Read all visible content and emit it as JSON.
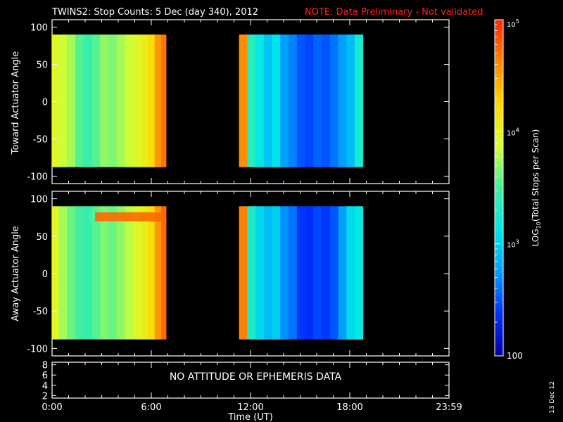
{
  "title": {
    "main": "TWINS2: Stop Counts:  5 Dec (day 340), 2012",
    "note": "NOTE: Data Preliminary - Not validated",
    "note_color": "#ff2020"
  },
  "side_date": "13 Dec 12",
  "chart_data": [
    {
      "type": "heatmap",
      "panel": "toward",
      "ylabel": "Toward Actuator Angle",
      "ylim": [
        -110,
        110
      ],
      "yticks": [
        100,
        50,
        0,
        -50,
        -100
      ],
      "xlim_hours": [
        0,
        24
      ],
      "data_y_range": [
        -88,
        90
      ],
      "coverage_hours": [
        [
          0.0,
          6.9
        ],
        [
          11.3,
          18.8
        ]
      ],
      "column_log_counts": [
        {
          "t0": 0.0,
          "t1": 0.4,
          "v": 3.95
        },
        {
          "t0": 0.4,
          "t1": 0.9,
          "v": 3.85
        },
        {
          "t0": 0.9,
          "t1": 1.4,
          "v": 3.75
        },
        {
          "t0": 1.4,
          "t1": 1.9,
          "v": 3.55
        },
        {
          "t0": 1.9,
          "t1": 2.4,
          "v": 3.45
        },
        {
          "t0": 2.4,
          "t1": 2.9,
          "v": 3.55
        },
        {
          "t0": 2.9,
          "t1": 3.4,
          "v": 3.7
        },
        {
          "t0": 3.4,
          "t1": 3.9,
          "v": 3.65
        },
        {
          "t0": 3.9,
          "t1": 4.4,
          "v": 3.75
        },
        {
          "t0": 4.4,
          "t1": 4.9,
          "v": 3.85
        },
        {
          "t0": 4.9,
          "t1": 5.4,
          "v": 3.95
        },
        {
          "t0": 5.4,
          "t1": 5.8,
          "v": 4.05
        },
        {
          "t0": 5.8,
          "t1": 6.2,
          "v": 4.2
        },
        {
          "t0": 6.2,
          "t1": 6.6,
          "v": 4.55
        },
        {
          "t0": 6.6,
          "t1": 6.9,
          "v": 4.7
        },
        {
          "t0": 11.3,
          "t1": 11.8,
          "v": 4.6
        },
        {
          "t0": 11.8,
          "t1": 12.3,
          "v": 3.35
        },
        {
          "t0": 12.3,
          "t1": 12.8,
          "v": 3.15
        },
        {
          "t0": 12.8,
          "t1": 13.3,
          "v": 2.95
        },
        {
          "t0": 13.3,
          "t1": 13.8,
          "v": 3.1
        },
        {
          "t0": 13.8,
          "t1": 14.3,
          "v": 2.75
        },
        {
          "t0": 14.3,
          "t1": 14.8,
          "v": 2.65
        },
        {
          "t0": 14.8,
          "t1": 15.3,
          "v": 2.5
        },
        {
          "t0": 15.3,
          "t1": 15.8,
          "v": 2.45
        },
        {
          "t0": 15.8,
          "t1": 16.3,
          "v": 2.55
        },
        {
          "t0": 16.3,
          "t1": 16.8,
          "v": 2.5
        },
        {
          "t0": 16.8,
          "t1": 17.3,
          "v": 2.6
        },
        {
          "t0": 17.3,
          "t1": 17.8,
          "v": 2.75
        },
        {
          "t0": 17.8,
          "t1": 18.3,
          "v": 2.9
        },
        {
          "t0": 18.3,
          "t1": 18.8,
          "v": 3.25
        }
      ]
    },
    {
      "type": "heatmap",
      "panel": "away",
      "ylabel": "Away Actuator Angle",
      "ylim": [
        -110,
        110
      ],
      "yticks": [
        100,
        50,
        0,
        -50,
        -100
      ],
      "xlim_hours": [
        0,
        24
      ],
      "data_y_range": [
        -88,
        90
      ],
      "coverage_hours": [
        [
          0.0,
          6.9
        ],
        [
          11.3,
          18.8
        ]
      ],
      "column_log_counts": [
        {
          "t0": 0.0,
          "t1": 0.4,
          "v": 3.95
        },
        {
          "t0": 0.4,
          "t1": 0.9,
          "v": 3.75
        },
        {
          "t0": 0.9,
          "t1": 1.4,
          "v": 3.6
        },
        {
          "t0": 1.4,
          "t1": 1.9,
          "v": 3.5
        },
        {
          "t0": 1.9,
          "t1": 2.4,
          "v": 3.45
        },
        {
          "t0": 2.4,
          "t1": 2.9,
          "v": 3.55
        },
        {
          "t0": 2.9,
          "t1": 3.4,
          "v": 3.65
        },
        {
          "t0": 3.4,
          "t1": 3.9,
          "v": 3.6
        },
        {
          "t0": 3.9,
          "t1": 4.4,
          "v": 3.7
        },
        {
          "t0": 4.4,
          "t1": 4.9,
          "v": 3.8
        },
        {
          "t0": 4.9,
          "t1": 5.4,
          "v": 3.95
        },
        {
          "t0": 5.4,
          "t1": 5.8,
          "v": 4.05
        },
        {
          "t0": 5.8,
          "t1": 6.2,
          "v": 4.2
        },
        {
          "t0": 6.2,
          "t1": 6.6,
          "v": 4.55
        },
        {
          "t0": 6.6,
          "t1": 6.9,
          "v": 4.75
        },
        {
          "t0": 11.3,
          "t1": 11.8,
          "v": 4.65
        },
        {
          "t0": 11.8,
          "t1": 12.3,
          "v": 3.3
        },
        {
          "t0": 12.3,
          "t1": 12.8,
          "v": 3.05
        },
        {
          "t0": 12.8,
          "t1": 13.3,
          "v": 2.9
        },
        {
          "t0": 13.3,
          "t1": 13.8,
          "v": 3.0
        },
        {
          "t0": 13.8,
          "t1": 14.3,
          "v": 2.7
        },
        {
          "t0": 14.3,
          "t1": 14.8,
          "v": 2.6
        },
        {
          "t0": 14.8,
          "t1": 15.3,
          "v": 2.4
        },
        {
          "t0": 15.3,
          "t1": 15.8,
          "v": 2.35
        },
        {
          "t0": 15.8,
          "t1": 16.3,
          "v": 2.45
        },
        {
          "t0": 16.3,
          "t1": 16.8,
          "v": 2.4
        },
        {
          "t0": 16.8,
          "t1": 17.3,
          "v": 2.5
        },
        {
          "t0": 17.3,
          "t1": 17.8,
          "v": 2.75
        },
        {
          "t0": 17.8,
          "t1": 18.3,
          "v": 3.05
        },
        {
          "t0": 18.3,
          "t1": 18.8,
          "v": 3.15
        }
      ],
      "annotations": [
        {
          "feature": "high-count band",
          "t0": 2.6,
          "t1": 6.8,
          "y0": 70,
          "y1": 82,
          "v": 4.75
        }
      ]
    },
    {
      "type": "table",
      "panel": "ephemeris",
      "ylim": [
        1.5,
        8.5
      ],
      "yticks": [
        8,
        6,
        4,
        2
      ],
      "message": "NO ATTITUDE OR EPHEMERIS DATA"
    }
  ],
  "x_axis": {
    "label": "Time (UT)",
    "ticks": [
      {
        "hour": 0,
        "label": "0:00"
      },
      {
        "hour": 6,
        "label": "6:00"
      },
      {
        "hour": 12,
        "label": "12:00"
      },
      {
        "hour": 18,
        "label": "18:00"
      },
      {
        "hour": 24,
        "label": "23:59"
      }
    ]
  },
  "colorbar": {
    "label": "LOG10(Total Stops per Scan)",
    "label_main": "LOG",
    "label_sub": "10",
    "label_tail": "(Total Stops per Scan)",
    "log_range": [
      2,
      5
    ],
    "tick_labels": [
      {
        "log": 5,
        "base": "10",
        "exp": "5"
      },
      {
        "log": 4,
        "base": "10",
        "exp": "4"
      },
      {
        "log": 3,
        "base": "10",
        "exp": "3"
      },
      {
        "log": 2,
        "text": "100"
      }
    ],
    "colors": [
      "#0000a0",
      "#0030ff",
      "#00a0ff",
      "#00e8e8",
      "#40f0a0",
      "#d8ff30",
      "#ffd800",
      "#ff8800",
      "#ff2800"
    ]
  }
}
